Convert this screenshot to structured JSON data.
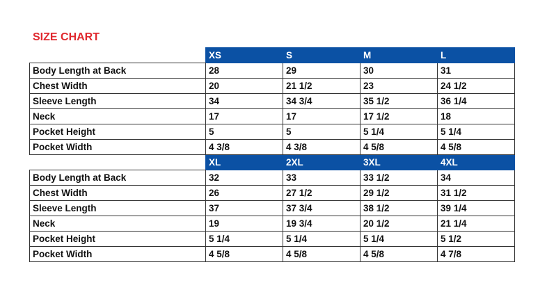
{
  "title": "SIZE CHART",
  "sections": [
    {
      "sizes": [
        "XS",
        "S",
        "M",
        "L"
      ],
      "rows": [
        {
          "label": "Body Length at Back",
          "values": [
            "28",
            "29",
            "30",
            "31"
          ]
        },
        {
          "label": "Chest Width",
          "values": [
            "20",
            "21 1/2",
            "23",
            "24 1/2"
          ]
        },
        {
          "label": "Sleeve Length",
          "values": [
            "34",
            "34 3/4",
            "35 1/2",
            "36 1/4"
          ]
        },
        {
          "label": "Neck",
          "values": [
            "17",
            "17",
            "17 1/2",
            "18"
          ]
        },
        {
          "label": "Pocket Height",
          "values": [
            "5",
            "5",
            "5 1/4",
            "5 1/4"
          ]
        },
        {
          "label": "Pocket Width",
          "values": [
            "4 3/8",
            "4 3/8",
            "4 5/8",
            "4 5/8"
          ]
        }
      ]
    },
    {
      "sizes": [
        "XL",
        "2XL",
        "3XL",
        "4XL"
      ],
      "rows": [
        {
          "label": "Body Length at Back",
          "values": [
            "32",
            "33",
            "33 1/2",
            "34"
          ]
        },
        {
          "label": "Chest Width",
          "values": [
            "26",
            "27 1/2",
            "29 1/2",
            "31 1/2"
          ]
        },
        {
          "label": "Sleeve Length",
          "values": [
            "37",
            "37 3/4",
            "38 1/2",
            "39 1/4"
          ]
        },
        {
          "label": "Neck",
          "values": [
            "19",
            "19 3/4",
            "20 1/2",
            "21 1/4"
          ]
        },
        {
          "label": "Pocket Height",
          "values": [
            "5 1/4",
            "5 1/4",
            "5 1/4",
            "5 1/2"
          ]
        },
        {
          "label": "Pocket Width",
          "values": [
            "4 5/8",
            "4 5/8",
            "4 5/8",
            "4 7/8"
          ]
        }
      ]
    }
  ]
}
